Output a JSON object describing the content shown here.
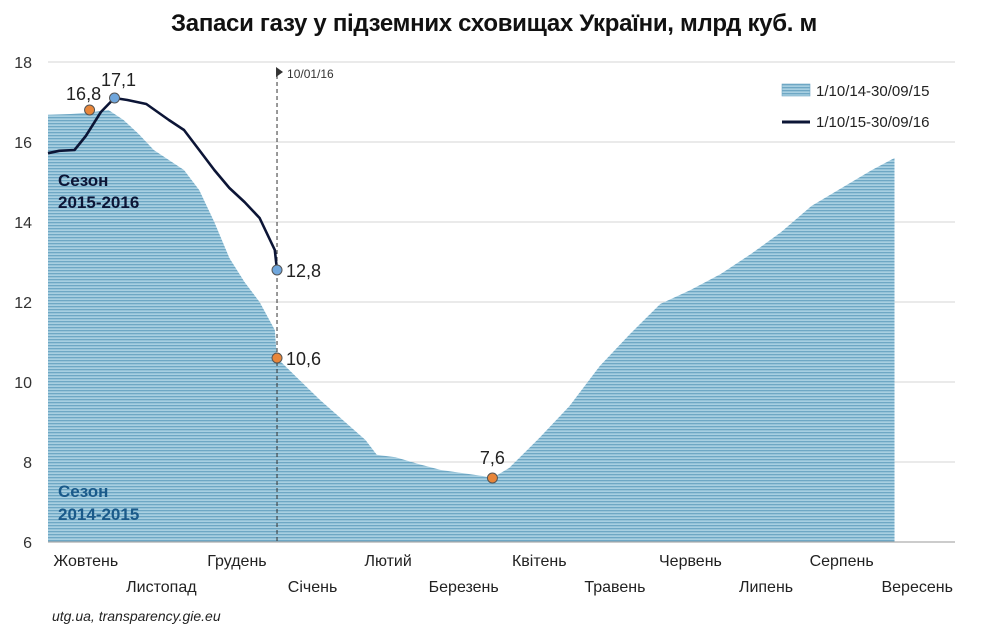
{
  "chart_data": {
    "type": "area",
    "title": "Запаси газу у підземних сховищах України, млрд куб. м",
    "source": "utg.ua, transparency.gie.eu",
    "ylim": [
      6,
      18
    ],
    "yticks": [
      "6",
      "8",
      "10",
      "12",
      "14",
      "16",
      "18"
    ],
    "ytick_values": [
      6,
      8,
      10,
      12,
      14,
      16,
      18
    ],
    "grid": true,
    "legend_position": "top-right",
    "x_labels": [
      "Жовтень",
      "Листопад",
      "Грудень",
      "Січень",
      "Лютий",
      "Березень",
      "Квітень",
      "Травень",
      "Червень",
      "Липень",
      "Серпень",
      "Вересень"
    ],
    "x_domain": [
      0,
      12
    ],
    "vline": {
      "x": 3.03,
      "label": "10/01/16"
    },
    "series": [
      {
        "name": "1/10/14-30/09/15",
        "style": "area",
        "color": "#7fb2cc",
        "points": [
          [
            0,
            16.68
          ],
          [
            0.3,
            16.7
          ],
          [
            0.6,
            16.75
          ],
          [
            0.8,
            16.8
          ],
          [
            1.0,
            16.55
          ],
          [
            1.2,
            16.2
          ],
          [
            1.4,
            15.8
          ],
          [
            1.6,
            15.55
          ],
          [
            1.8,
            15.3
          ],
          [
            2.0,
            14.8
          ],
          [
            2.2,
            14.0
          ],
          [
            2.4,
            13.1
          ],
          [
            2.6,
            12.5
          ],
          [
            2.8,
            12.0
          ],
          [
            3.0,
            11.3
          ],
          [
            3.03,
            10.6
          ],
          [
            3.3,
            10.1
          ],
          [
            3.6,
            9.55
          ],
          [
            3.9,
            9.05
          ],
          [
            4.2,
            8.55
          ],
          [
            4.35,
            8.18
          ],
          [
            4.6,
            8.12
          ],
          [
            4.9,
            7.95
          ],
          [
            5.2,
            7.8
          ],
          [
            5.5,
            7.72
          ],
          [
            5.75,
            7.65
          ],
          [
            5.88,
            7.6
          ],
          [
            6.1,
            7.85
          ],
          [
            6.5,
            8.6
          ],
          [
            6.9,
            9.4
          ],
          [
            7.3,
            10.4
          ],
          [
            7.7,
            11.2
          ],
          [
            8.1,
            11.95
          ],
          [
            8.5,
            12.3
          ],
          [
            8.9,
            12.7
          ],
          [
            9.3,
            13.2
          ],
          [
            9.7,
            13.75
          ],
          [
            10.1,
            14.4
          ],
          [
            10.5,
            14.85
          ],
          [
            10.9,
            15.3
          ],
          [
            11.2,
            15.6
          ]
        ]
      },
      {
        "name": "1/10/15-30/09/16",
        "style": "line",
        "color": "#0c1536",
        "points": [
          [
            0,
            15.72
          ],
          [
            0.15,
            15.78
          ],
          [
            0.35,
            15.8
          ],
          [
            0.5,
            16.15
          ],
          [
            0.7,
            16.75
          ],
          [
            0.88,
            17.1
          ],
          [
            1.05,
            17.05
          ],
          [
            1.3,
            16.95
          ],
          [
            1.6,
            16.55
          ],
          [
            1.8,
            16.3
          ],
          [
            2.0,
            15.8
          ],
          [
            2.2,
            15.3
          ],
          [
            2.4,
            14.85
          ],
          [
            2.6,
            14.5
          ],
          [
            2.8,
            14.1
          ],
          [
            3.0,
            13.3
          ],
          [
            3.03,
            12.8
          ]
        ]
      }
    ],
    "point_labels": [
      {
        "text": "16,8",
        "x": 0.55,
        "y": 16.8,
        "color": "#e8863a"
      },
      {
        "text": "17,1",
        "x": 0.88,
        "y": 17.1,
        "color": "#6fa6dc"
      },
      {
        "text": "12,8",
        "x": 3.03,
        "y": 12.8,
        "color": "#6fa6dc"
      },
      {
        "text": "10,6",
        "x": 3.03,
        "y": 10.6,
        "color": "#e8863a"
      },
      {
        "text": "7,6",
        "x": 5.88,
        "y": 7.6,
        "color": "#e8863a"
      }
    ],
    "annotations": [
      {
        "line1": "Сезон",
        "line2": "2015-2016",
        "color": "#0c1536"
      },
      {
        "line1": "Сезон",
        "line2": "2014-2015",
        "color": "#1a5a8a"
      }
    ]
  }
}
